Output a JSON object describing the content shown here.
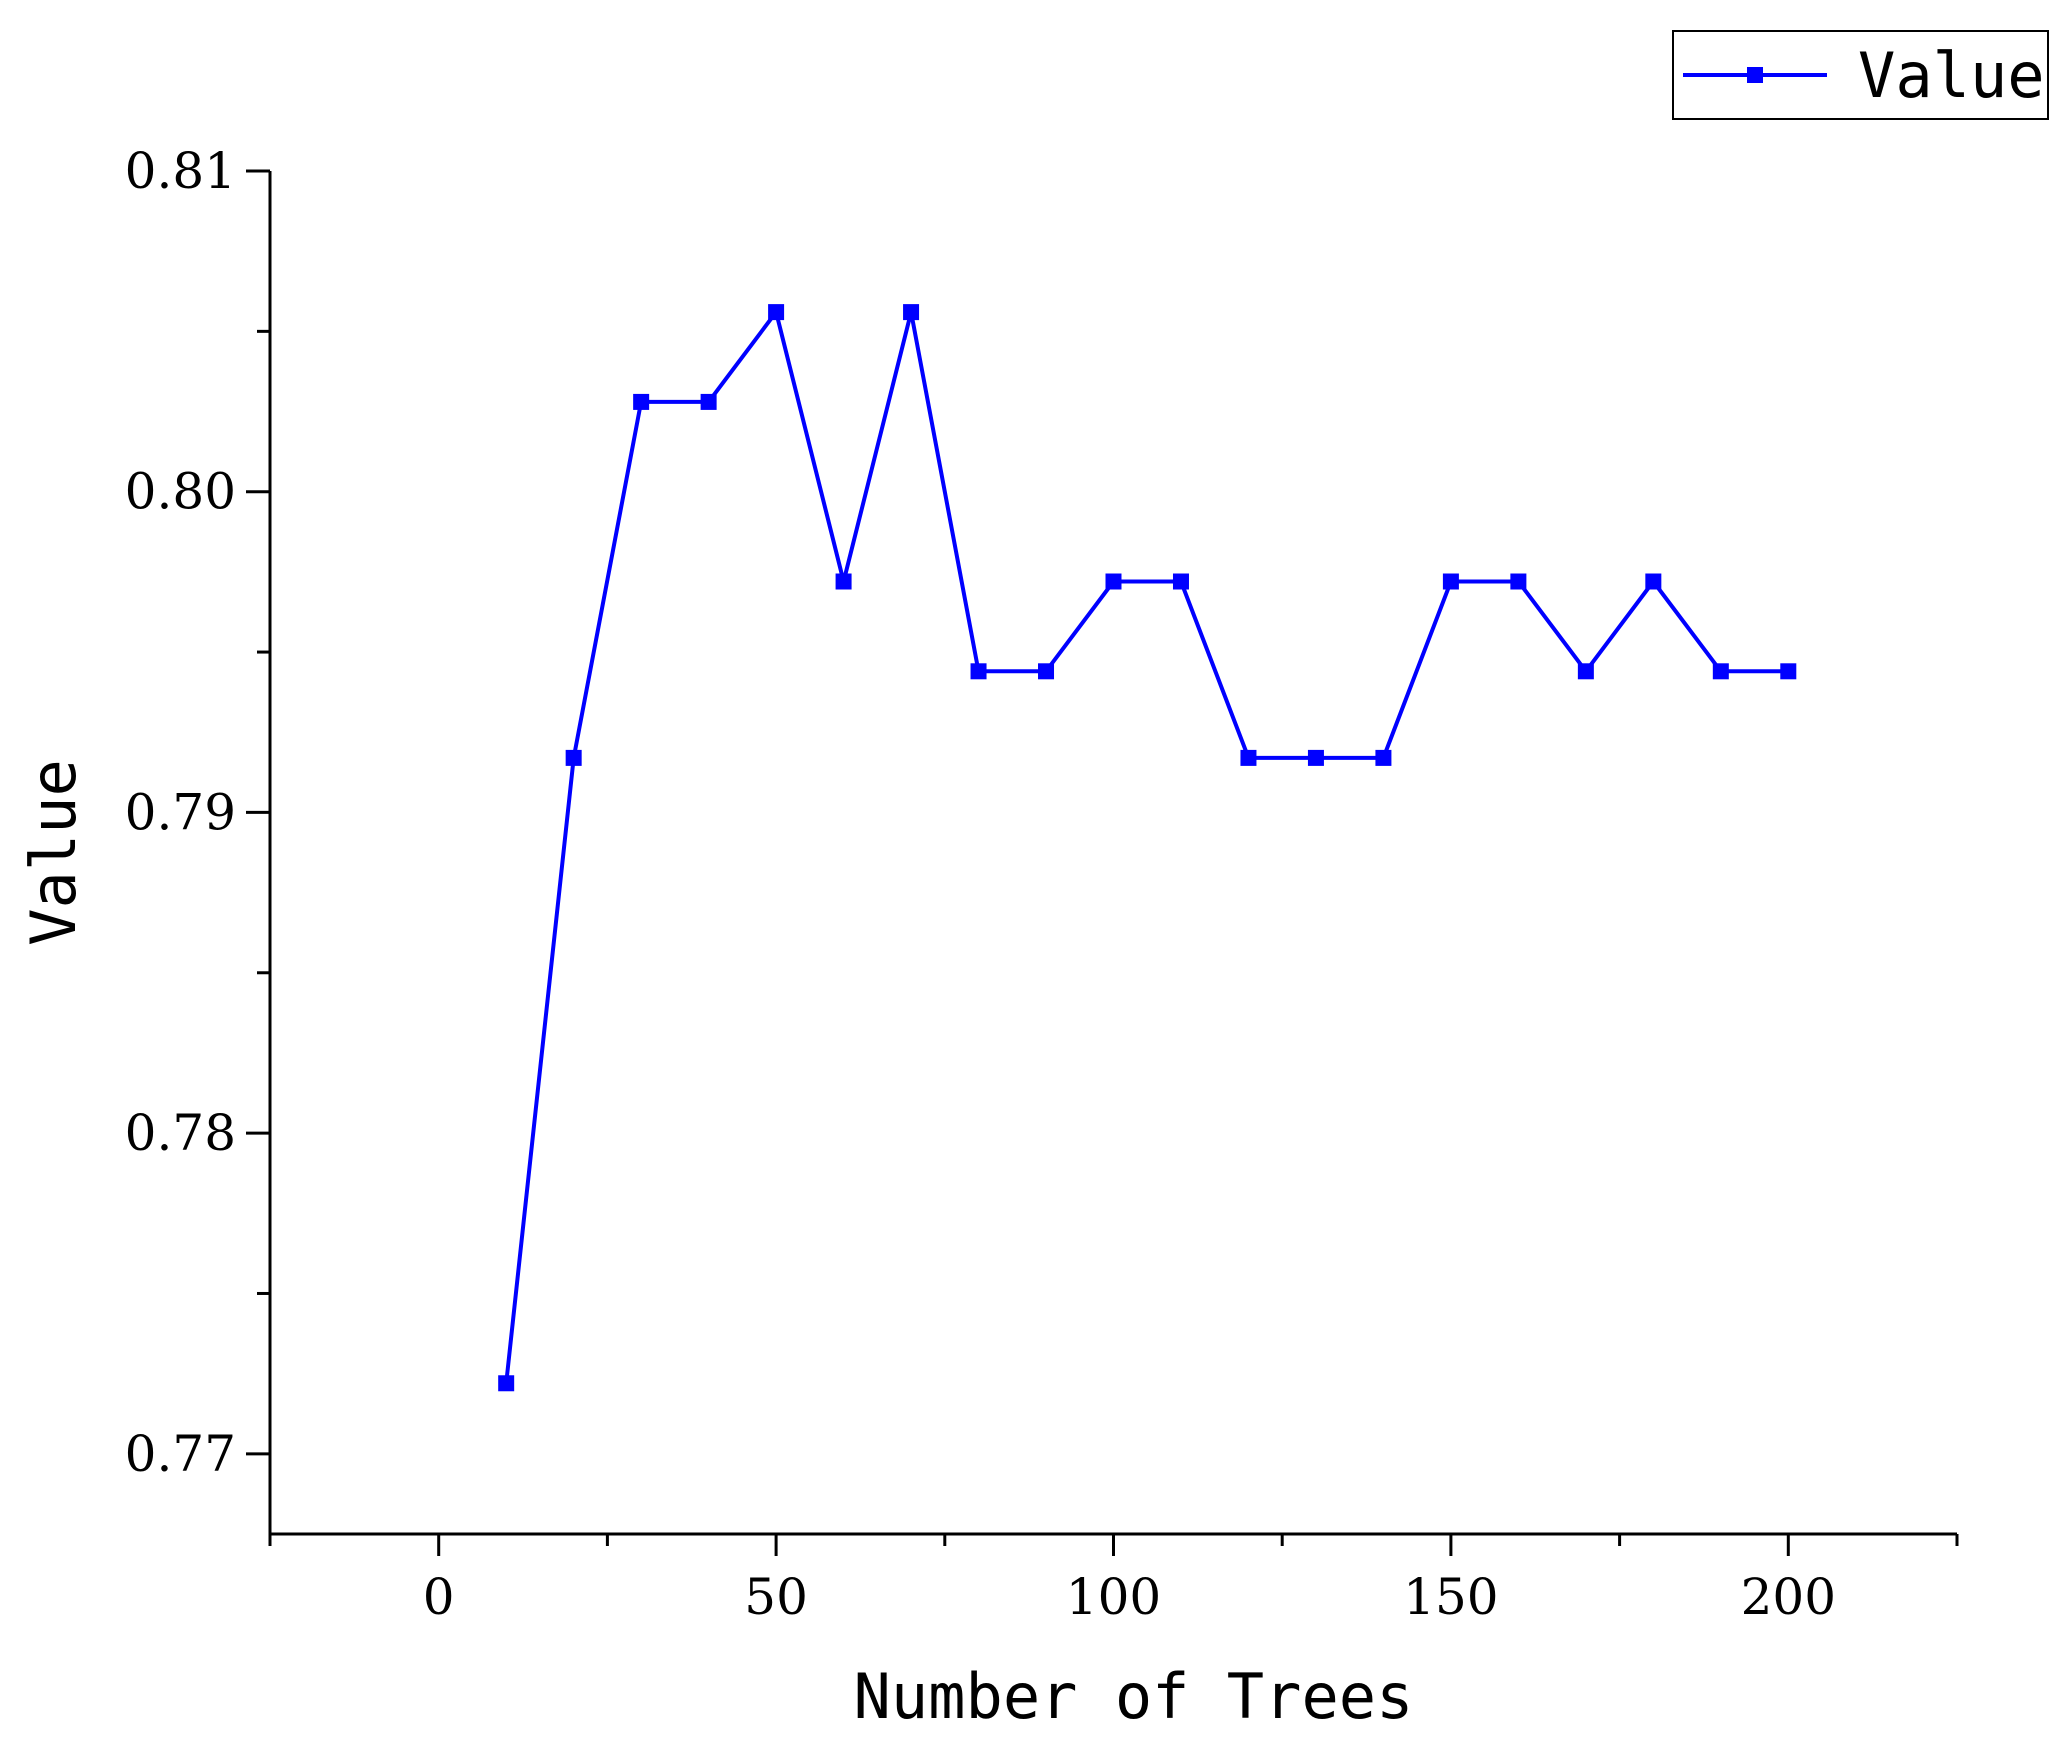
{
  "chart_data": {
    "type": "line",
    "title": "",
    "xlabel": "Number of Trees",
    "ylabel": "Value",
    "xlim": [
      -25,
      225
    ],
    "ylim": [
      0.7675,
      0.81
    ],
    "x_ticks": [
      0,
      50,
      100,
      150,
      200
    ],
    "x_tick_labels": [
      "0",
      "50",
      "100",
      "150",
      "200"
    ],
    "y_ticks": [
      0.77,
      0.78,
      0.79,
      0.8,
      0.81
    ],
    "y_tick_labels": [
      "0.77",
      "0.78",
      "0.79",
      "0.80",
      "0.81"
    ],
    "grid": false,
    "legend": "top-right",
    "line_color": "#0000ff",
    "marker": "square",
    "series": [
      {
        "name": "Value",
        "x": [
          10,
          20,
          30,
          40,
          50,
          60,
          70,
          80,
          90,
          100,
          110,
          120,
          130,
          140,
          150,
          160,
          170,
          180,
          190,
          200
        ],
        "values": [
          0.7722,
          0.7917,
          0.8028,
          0.8028,
          0.8056,
          0.7972,
          0.8056,
          0.7944,
          0.7944,
          0.7972,
          0.7972,
          0.7917,
          0.7917,
          0.7917,
          0.7972,
          0.7972,
          0.7944,
          0.7972,
          0.7944,
          0.7944
        ]
      }
    ]
  }
}
